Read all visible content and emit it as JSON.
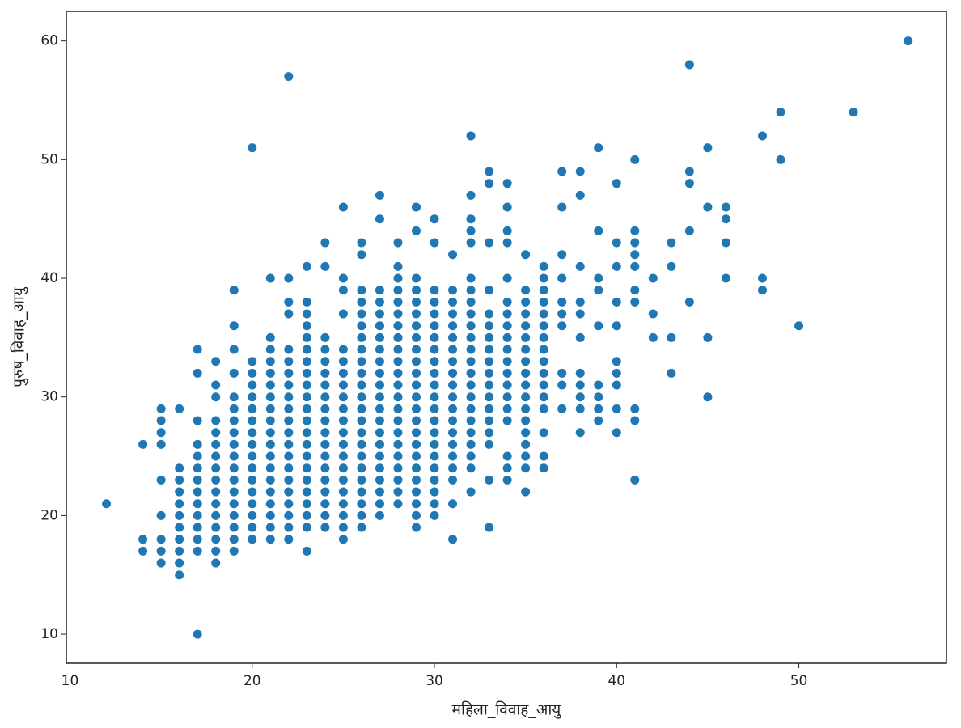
{
  "chart_data": {
    "type": "scatter",
    "x_label": "महिला_विवाह_आयु",
    "y_label": "पुरुष_विवाह_आयु",
    "color": "#1f77b4",
    "xlim": [
      9.8,
      58.1
    ],
    "ylim": [
      7.55,
      62.5
    ],
    "xticks": [
      10,
      20,
      30,
      40,
      50
    ],
    "yticks": [
      10,
      20,
      30,
      40,
      50,
      60
    ],
    "x": [
      12,
      14,
      14,
      14,
      15,
      15,
      15,
      15,
      15,
      15,
      15,
      15,
      15,
      16,
      16,
      16,
      16,
      16,
      16,
      16,
      16,
      16,
      16,
      16,
      17,
      17,
      17,
      17,
      17,
      17,
      17,
      17,
      17,
      17,
      17,
      17,
      17,
      17,
      18,
      18,
      18,
      18,
      18,
      18,
      18,
      18,
      18,
      18,
      18,
      18,
      18,
      18,
      18,
      18,
      19,
      19,
      19,
      19,
      19,
      19,
      19,
      19,
      19,
      19,
      19,
      19,
      19,
      19,
      19,
      19,
      19,
      19,
      20,
      20,
      20,
      20,
      20,
      20,
      20,
      20,
      20,
      20,
      20,
      20,
      20,
      20,
      20,
      20,
      20,
      21,
      21,
      21,
      21,
      21,
      21,
      21,
      21,
      21,
      21,
      21,
      21,
      21,
      21,
      21,
      21,
      21,
      21,
      21,
      22,
      22,
      22,
      22,
      22,
      22,
      22,
      22,
      22,
      22,
      22,
      22,
      22,
      22,
      22,
      22,
      22,
      22,
      22,
      22,
      22,
      23,
      23,
      23,
      23,
      23,
      23,
      23,
      23,
      23,
      23,
      23,
      23,
      23,
      23,
      23,
      23,
      23,
      23,
      23,
      23,
      23,
      23,
      24,
      24,
      24,
      24,
      24,
      24,
      24,
      24,
      24,
      24,
      24,
      24,
      24,
      24,
      24,
      24,
      24,
      24,
      24,
      25,
      25,
      25,
      25,
      25,
      25,
      25,
      25,
      25,
      25,
      25,
      25,
      25,
      25,
      25,
      25,
      25,
      25,
      25,
      25,
      25,
      26,
      26,
      26,
      26,
      26,
      26,
      26,
      26,
      26,
      26,
      26,
      26,
      26,
      26,
      26,
      26,
      26,
      26,
      26,
      26,
      26,
      26,
      26,
      27,
      27,
      27,
      27,
      27,
      27,
      27,
      27,
      27,
      27,
      27,
      27,
      27,
      27,
      27,
      27,
      27,
      27,
      27,
      27,
      27,
      27,
      28,
      28,
      28,
      28,
      28,
      28,
      28,
      28,
      28,
      28,
      28,
      28,
      28,
      28,
      28,
      28,
      28,
      28,
      28,
      28,
      28,
      28,
      29,
      29,
      29,
      29,
      29,
      29,
      29,
      29,
      29,
      29,
      29,
      29,
      29,
      29,
      29,
      29,
      29,
      29,
      29,
      29,
      29,
      29,
      29,
      29,
      30,
      30,
      30,
      30,
      30,
      30,
      30,
      30,
      30,
      30,
      30,
      30,
      30,
      30,
      30,
      30,
      30,
      30,
      30,
      30,
      30,
      30,
      31,
      31,
      31,
      31,
      31,
      31,
      31,
      31,
      31,
      31,
      31,
      31,
      31,
      31,
      31,
      31,
      31,
      31,
      31,
      31,
      32,
      32,
      32,
      32,
      32,
      32,
      32,
      32,
      32,
      32,
      32,
      32,
      32,
      32,
      32,
      32,
      32,
      32,
      32,
      32,
      32,
      32,
      32,
      33,
      33,
      33,
      33,
      33,
      33,
      33,
      33,
      33,
      33,
      33,
      33,
      33,
      33,
      33,
      33,
      33,
      33,
      34,
      34,
      34,
      34,
      34,
      34,
      34,
      34,
      34,
      34,
      34,
      34,
      34,
      34,
      34,
      34,
      34,
      34,
      34,
      35,
      35,
      35,
      35,
      35,
      35,
      35,
      35,
      35,
      35,
      35,
      35,
      35,
      35,
      35,
      35,
      35,
      35,
      36,
      36,
      36,
      36,
      36,
      36,
      36,
      36,
      36,
      36,
      36,
      36,
      36,
      36,
      36,
      36,
      37,
      37,
      37,
      37,
      37,
      37,
      37,
      37,
      37,
      37,
      38,
      38,
      38,
      38,
      38,
      38,
      38,
      38,
      38,
      38,
      38,
      39,
      39,
      39,
      39,
      39,
      39,
      39,
      39,
      39,
      40,
      40,
      40,
      40,
      40,
      40,
      40,
      40,
      40,
      40,
      41,
      41,
      41,
      41,
      41,
      41,
      41,
      41,
      41,
      41,
      42,
      42,
      42,
      43,
      43,
      43,
      43,
      44,
      44,
      44,
      44,
      44,
      45,
      45,
      45,
      45,
      46,
      46,
      46,
      46,
      48,
      48,
      48,
      49,
      49,
      50,
      53,
      56
    ],
    "values": [
      21,
      17,
      18,
      26,
      16,
      17,
      18,
      20,
      23,
      26,
      27,
      28,
      29,
      15,
      16,
      17,
      18,
      19,
      20,
      21,
      22,
      23,
      24,
      29,
      10,
      17,
      18,
      19,
      20,
      21,
      22,
      23,
      24,
      25,
      26,
      28,
      32,
      34,
      16,
      17,
      18,
      19,
      20,
      21,
      22,
      23,
      24,
      25,
      26,
      27,
      28,
      30,
      31,
      33,
      17,
      18,
      19,
      20,
      21,
      22,
      23,
      24,
      25,
      26,
      27,
      28,
      29,
      30,
      32,
      34,
      36,
      39,
      18,
      19,
      20,
      21,
      22,
      23,
      24,
      25,
      26,
      27,
      28,
      29,
      30,
      31,
      32,
      33,
      51,
      18,
      19,
      20,
      21,
      22,
      23,
      24,
      25,
      26,
      27,
      28,
      29,
      30,
      31,
      32,
      33,
      34,
      35,
      40,
      18,
      19,
      20,
      21,
      22,
      23,
      24,
      25,
      26,
      27,
      28,
      29,
      30,
      31,
      32,
      33,
      34,
      37,
      38,
      40,
      57,
      17,
      19,
      20,
      21,
      22,
      23,
      24,
      25,
      26,
      27,
      28,
      29,
      30,
      31,
      32,
      33,
      34,
      35,
      36,
      37,
      38,
      41,
      19,
      20,
      21,
      22,
      23,
      24,
      25,
      26,
      27,
      28,
      29,
      30,
      31,
      32,
      33,
      34,
      35,
      41,
      43,
      18,
      19,
      20,
      21,
      22,
      23,
      24,
      25,
      26,
      27,
      28,
      29,
      30,
      31,
      32,
      33,
      34,
      37,
      39,
      40,
      46,
      19,
      20,
      21,
      22,
      23,
      24,
      25,
      26,
      27,
      28,
      29,
      30,
      31,
      32,
      33,
      34,
      35,
      36,
      37,
      38,
      39,
      42,
      43,
      20,
      21,
      22,
      23,
      24,
      25,
      26,
      27,
      28,
      29,
      30,
      31,
      32,
      33,
      34,
      35,
      36,
      37,
      38,
      39,
      45,
      47,
      21,
      22,
      23,
      24,
      25,
      26,
      27,
      28,
      29,
      30,
      31,
      32,
      33,
      34,
      35,
      36,
      37,
      38,
      39,
      40,
      41,
      43,
      19,
      20,
      21,
      22,
      23,
      24,
      25,
      26,
      27,
      28,
      29,
      30,
      31,
      32,
      33,
      34,
      35,
      36,
      37,
      38,
      39,
      40,
      44,
      46,
      20,
      21,
      22,
      23,
      24,
      25,
      26,
      27,
      28,
      29,
      30,
      31,
      32,
      33,
      34,
      35,
      36,
      37,
      38,
      39,
      43,
      45,
      18,
      21,
      23,
      24,
      25,
      26,
      27,
      28,
      29,
      30,
      31,
      32,
      33,
      34,
      35,
      36,
      37,
      38,
      39,
      42,
      22,
      24,
      25,
      26,
      27,
      28,
      29,
      30,
      31,
      32,
      33,
      34,
      35,
      36,
      37,
      38,
      39,
      40,
      43,
      44,
      45,
      47,
      52,
      19,
      23,
      26,
      27,
      28,
      29,
      30,
      31,
      32,
      33,
      34,
      35,
      36,
      37,
      39,
      43,
      48,
      49,
      23,
      24,
      25,
      28,
      29,
      30,
      31,
      32,
      33,
      34,
      35,
      36,
      37,
      38,
      40,
      43,
      44,
      46,
      48,
      22,
      24,
      25,
      26,
      27,
      28,
      29,
      30,
      31,
      32,
      33,
      34,
      35,
      36,
      37,
      38,
      39,
      42,
      24,
      25,
      27,
      29,
      30,
      31,
      32,
      33,
      34,
      35,
      36,
      37,
      38,
      39,
      40,
      41,
      29,
      31,
      32,
      36,
      37,
      38,
      40,
      42,
      46,
      49,
      27,
      29,
      30,
      31,
      32,
      35,
      37,
      38,
      41,
      47,
      49,
      28,
      29,
      30,
      31,
      36,
      39,
      40,
      44,
      51,
      27,
      29,
      31,
      32,
      33,
      36,
      38,
      41,
      43,
      48,
      23,
      28,
      29,
      38,
      39,
      41,
      42,
      43,
      44,
      50,
      35,
      37,
      40,
      32,
      35,
      41,
      43,
      38,
      44,
      48,
      49,
      58,
      30,
      35,
      46,
      51,
      40,
      43,
      45,
      46,
      39,
      40,
      52,
      50,
      54,
      36,
      54,
      60
    ]
  }
}
